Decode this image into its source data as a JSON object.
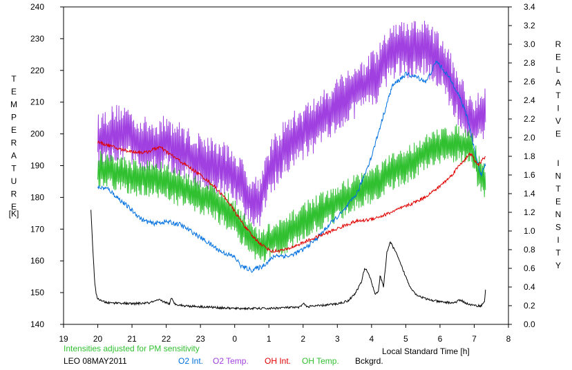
{
  "chart_data": {
    "type": "line",
    "left_axis_label": "TEMPERATURE",
    "left_axis_unit": "[K]",
    "right_axis_label": "RELATIVE INTENSITY",
    "xlabel": "Local Standard Time [h]",
    "note": "Intensities adjusted for PM sensitivity",
    "site_date": "LEO 08MAY2011",
    "xlim": [
      19,
      32
    ],
    "x_tick_labels": [
      "19",
      "20",
      "21",
      "22",
      "23",
      "0",
      "1",
      "2",
      "3",
      "4",
      "5",
      "6",
      "7",
      "8"
    ],
    "ylim_left": [
      140,
      240
    ],
    "y_left_ticks": [
      "140",
      "150",
      "160",
      "170",
      "180",
      "190",
      "200",
      "210",
      "220",
      "230",
      "240"
    ],
    "ylim_right": [
      0.0,
      3.4
    ],
    "y_right_ticks": [
      "0.0",
      "0.2",
      "0.4",
      "0.6",
      "0.8",
      "1.0",
      "1.2",
      "1.4",
      "1.6",
      "1.8",
      "2.0",
      "2.2",
      "2.4",
      "2.6",
      "2.8",
      "3.0",
      "3.2",
      "3.4"
    ],
    "colors": {
      "o2_int": "#0070e0",
      "o2_temp": "#a040e0",
      "oh_int": "#e00000",
      "oh_temp": "#30c030",
      "bckgrd": "#000000"
    },
    "series": [
      {
        "name": "O2 Int.",
        "axis": "right",
        "color": "#0070e0",
        "x": [
          20.0,
          20.3,
          20.6,
          21.0,
          21.3,
          21.6,
          22.0,
          22.4,
          22.8,
          23.2,
          23.6,
          24.0,
          24.2,
          24.5,
          24.8,
          25.2,
          25.6,
          26.0,
          26.4,
          26.8,
          27.2,
          27.6,
          28.0,
          28.3,
          28.6,
          29.0,
          29.3,
          29.6,
          29.9,
          30.2,
          30.5,
          30.8,
          31.0,
          31.2,
          31.33
        ],
        "y": [
          1.47,
          1.45,
          1.35,
          1.22,
          1.12,
          1.08,
          1.1,
          1.07,
          0.98,
          0.88,
          0.78,
          0.72,
          0.62,
          0.58,
          0.62,
          0.74,
          0.73,
          0.8,
          0.92,
          1.08,
          1.22,
          1.42,
          1.8,
          2.18,
          2.55,
          2.68,
          2.65,
          2.6,
          2.82,
          2.68,
          2.5,
          2.22,
          1.88,
          1.6,
          1.72
        ]
      },
      {
        "name": "O2 Temp.",
        "axis": "left",
        "color": "#a040e0",
        "x": [
          20.0,
          20.4,
          20.8,
          21.2,
          21.6,
          22.0,
          22.4,
          22.8,
          23.2,
          23.6,
          24.0,
          24.4,
          24.7,
          25.0,
          25.4,
          25.8,
          26.2,
          26.6,
          27.0,
          27.4,
          27.8,
          28.2,
          28.5,
          28.8,
          29.1,
          29.4,
          29.7,
          30.0,
          30.3,
          30.6,
          30.9,
          31.1,
          31.33
        ],
        "y": [
          198,
          200,
          201,
          197,
          196,
          197,
          195,
          192,
          191,
          189,
          187,
          180,
          178,
          188,
          195,
          199,
          202,
          205,
          210,
          213,
          215,
          219,
          225,
          227,
          226,
          228,
          226,
          223,
          217,
          210,
          203,
          205,
          208
        ],
        "noise": 9
      },
      {
        "name": "OH Int.",
        "axis": "right",
        "color": "#e00000",
        "x": [
          20.0,
          20.3,
          20.6,
          21.0,
          21.4,
          21.8,
          22.2,
          22.6,
          23.0,
          23.4,
          23.8,
          24.2,
          24.5,
          24.8,
          25.1,
          25.5,
          25.9,
          26.3,
          26.7,
          27.1,
          27.5,
          27.9,
          28.3,
          28.7,
          29.1,
          29.5,
          29.9,
          30.3,
          30.6,
          30.9,
          31.1,
          31.33
        ],
        "y": [
          1.95,
          1.92,
          1.88,
          1.85,
          1.84,
          1.9,
          1.8,
          1.7,
          1.6,
          1.48,
          1.32,
          1.1,
          0.95,
          0.85,
          0.78,
          0.8,
          0.86,
          0.92,
          0.98,
          1.04,
          1.1,
          1.12,
          1.16,
          1.22,
          1.28,
          1.35,
          1.45,
          1.58,
          1.72,
          1.83,
          1.7,
          1.8
        ]
      },
      {
        "name": "OH Temp.",
        "axis": "left",
        "color": "#30c030",
        "x": [
          20.0,
          20.4,
          20.8,
          21.2,
          21.6,
          22.0,
          22.4,
          22.8,
          23.2,
          23.6,
          24.0,
          24.4,
          24.7,
          25.0,
          25.3,
          25.6,
          25.9,
          26.2,
          26.6,
          27.0,
          27.4,
          27.8,
          28.2,
          28.6,
          29.0,
          29.4,
          29.8,
          30.2,
          30.6,
          30.9,
          31.1,
          31.33
        ],
        "y": [
          189,
          188,
          187,
          186,
          186,
          185,
          183,
          181,
          180,
          177,
          174,
          168,
          164,
          166,
          167,
          169,
          172,
          174,
          176,
          178,
          181,
          183,
          185,
          188,
          190,
          193,
          195,
          197,
          197,
          196,
          189,
          185
        ],
        "noise": 6
      },
      {
        "name": "Bckgrd.",
        "axis": "right",
        "color": "#000000",
        "x": [
          19.8,
          19.85,
          19.9,
          19.95,
          20.0,
          20.1,
          20.3,
          20.6,
          21.0,
          21.5,
          21.8,
          22.1,
          22.15,
          22.25,
          22.5,
          23.0,
          23.5,
          24.0,
          24.5,
          25.0,
          25.5,
          25.9,
          26.0,
          26.1,
          26.5,
          27.0,
          27.3,
          27.5,
          27.7,
          27.8,
          27.9,
          28.0,
          28.1,
          28.2,
          28.25,
          28.35,
          28.45,
          28.55,
          28.7,
          28.9,
          29.1,
          29.3,
          29.6,
          30.0,
          30.4,
          30.6,
          30.8,
          31.0,
          31.2,
          31.3,
          31.33
        ],
        "y": [
          1.22,
          0.85,
          0.5,
          0.32,
          0.28,
          0.25,
          0.23,
          0.23,
          0.22,
          0.23,
          0.26,
          0.22,
          0.28,
          0.22,
          0.2,
          0.19,
          0.18,
          0.17,
          0.17,
          0.17,
          0.18,
          0.18,
          0.23,
          0.19,
          0.2,
          0.22,
          0.25,
          0.32,
          0.45,
          0.6,
          0.56,
          0.45,
          0.33,
          0.35,
          0.52,
          0.4,
          0.78,
          0.88,
          0.78,
          0.6,
          0.42,
          0.32,
          0.27,
          0.24,
          0.23,
          0.26,
          0.22,
          0.2,
          0.2,
          0.24,
          0.38
        ]
      }
    ]
  },
  "legend": [
    {
      "label": "O2 Int.",
      "color": "#0070e0"
    },
    {
      "label": "O2 Temp.",
      "color": "#a040e0"
    },
    {
      "label": "OH Int.",
      "color": "#e00000"
    },
    {
      "label": "OH Temp.",
      "color": "#30c030"
    },
    {
      "label": "Bckgrd.",
      "color": "#000000"
    }
  ]
}
